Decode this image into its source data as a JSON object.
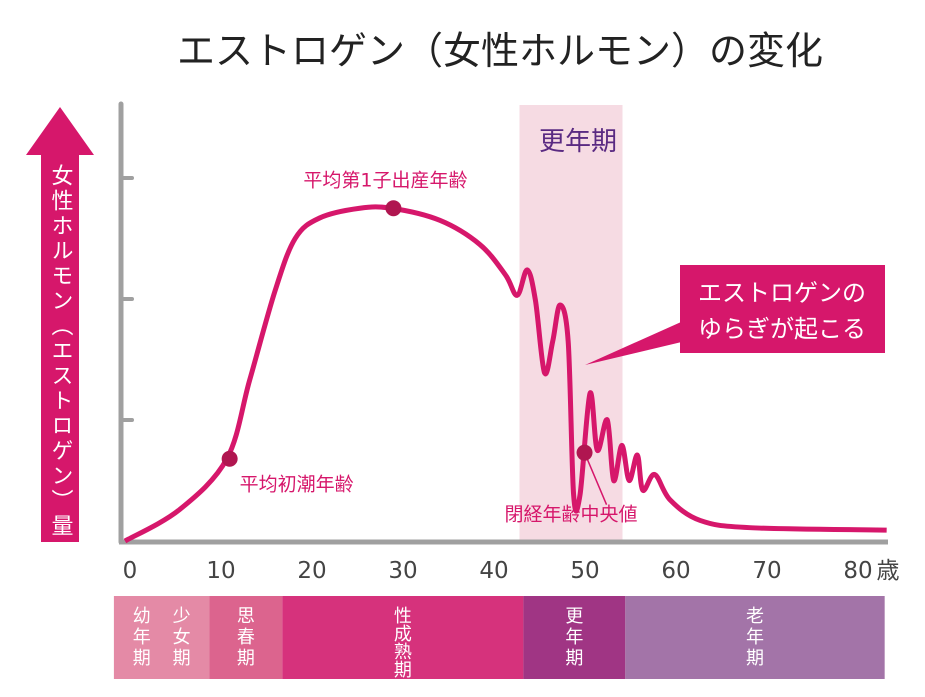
{
  "chart_data": {
    "type": "line",
    "title": "エストロゲン（女性ホルモン）の変化",
    "ylabel": "女性ホルモン（エストロゲン）量",
    "xunit": "歳",
    "xlim": [
      0,
      84
    ],
    "ylim": [
      0,
      3.6
    ],
    "x_ticks": [
      0,
      10,
      20,
      30,
      40,
      50,
      60,
      70,
      80
    ],
    "y_ticks": [
      1,
      2,
      3
    ],
    "grid": false,
    "colors": {
      "line": "#d6176b",
      "marker": "#b01650",
      "axis": "#a0a0a0",
      "band": "#f6dbe3",
      "callout": "#d6176b",
      "title": "#222222",
      "band_label": "#5a2a82"
    },
    "series": [
      {
        "x": [
          0,
          6,
          11.2,
          13.7,
          16.5,
          18.7,
          21.4,
          25.8,
          29.3,
          34.6,
          39,
          41.8,
          43.1,
          44.2,
          45.1,
          46.1,
          47,
          47.8,
          48.7,
          49.3,
          50,
          51.1,
          51.9,
          53,
          53.7,
          54.6,
          55.4,
          56.3,
          56.9,
          58.2,
          59.9,
          63.2,
          68.7,
          83.7
        ],
        "y": [
          0,
          0.26,
          0.68,
          1.33,
          2.07,
          2.5,
          2.67,
          2.75,
          2.75,
          2.65,
          2.45,
          2.2,
          2.03,
          2.24,
          1.99,
          1.39,
          1.65,
          1.95,
          1.65,
          0.38,
          0.38,
          1.22,
          0.75,
          1.0,
          0.5,
          0.79,
          0.5,
          0.71,
          0.42,
          0.55,
          0.34,
          0.17,
          0.11,
          0.09
        ]
      }
    ],
    "highlight_band": {
      "label": "更年期",
      "from": 45,
      "to": 55
    },
    "annotations": [
      {
        "label": "平均初潮年齢",
        "x": 11.5,
        "y": 0.68
      },
      {
        "label": "平均第1子出産年齢",
        "x": 29.5,
        "y": 2.75
      },
      {
        "label": "閉経年齢中央値",
        "x": 50.5,
        "y": 0.73
      }
    ],
    "callout": {
      "lines": [
        "エストロゲンの",
        "ゆらぎが起こる"
      ]
    },
    "life_stages": [
      {
        "labels": [
          "幼年期",
          "少女期"
        ],
        "from": -1,
        "to": 9.5,
        "color": "#e48aa6"
      },
      {
        "labels": [
          "思春期"
        ],
        "from": 9.5,
        "to": 17.5,
        "color": "#dc648e"
      },
      {
        "labels": [
          "性成熟期"
        ],
        "from": 17.5,
        "to": 44,
        "color": "#d6327c"
      },
      {
        "labels": [
          "更年期"
        ],
        "from": 44,
        "to": 55.2,
        "color": "#a03584"
      },
      {
        "labels": [
          "老年期"
        ],
        "from": 55.2,
        "to": 83.7,
        "color": "#a374a8"
      }
    ]
  }
}
